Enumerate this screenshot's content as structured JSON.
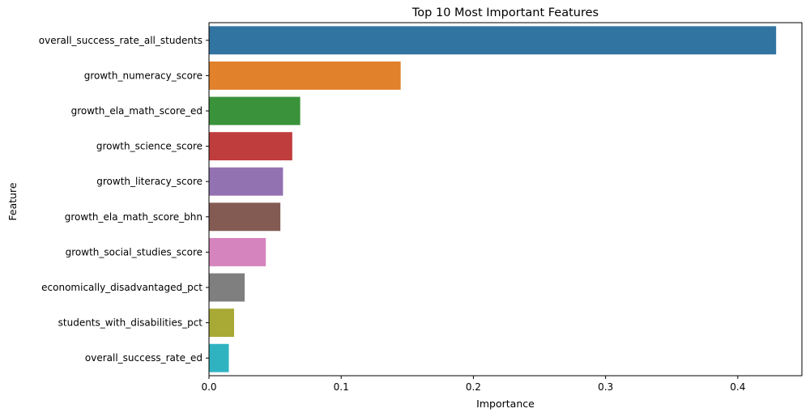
{
  "chart_data": {
    "type": "bar",
    "orientation": "horizontal",
    "title": "Top 10 Most Important Features",
    "xlabel": "Importance",
    "ylabel": "Feature",
    "xlim": [
      0,
      0.4485
    ],
    "xticks": [
      "0.0",
      "0.1",
      "0.2",
      "0.3",
      "0.4"
    ],
    "grid": false,
    "categories": [
      "overall_success_rate_all_students",
      "growth_numeracy_score",
      "growth_ela_math_score_ed",
      "growth_science_score",
      "growth_literacy_score",
      "growth_ela_math_score_bhn",
      "growth_social_studies_score",
      "economically_disadvantaged_pct",
      "students_with_disabilities_pct",
      "overall_success_rate_ed"
    ],
    "values": [
      0.429,
      0.145,
      0.069,
      0.063,
      0.056,
      0.054,
      0.043,
      0.027,
      0.019,
      0.015
    ],
    "colors": [
      "#3274a1",
      "#e1812c",
      "#3a923a",
      "#c03d3e",
      "#9372b2",
      "#845b53",
      "#d684bd",
      "#7f7f7f",
      "#a9aa35",
      "#2fb3c1"
    ]
  }
}
